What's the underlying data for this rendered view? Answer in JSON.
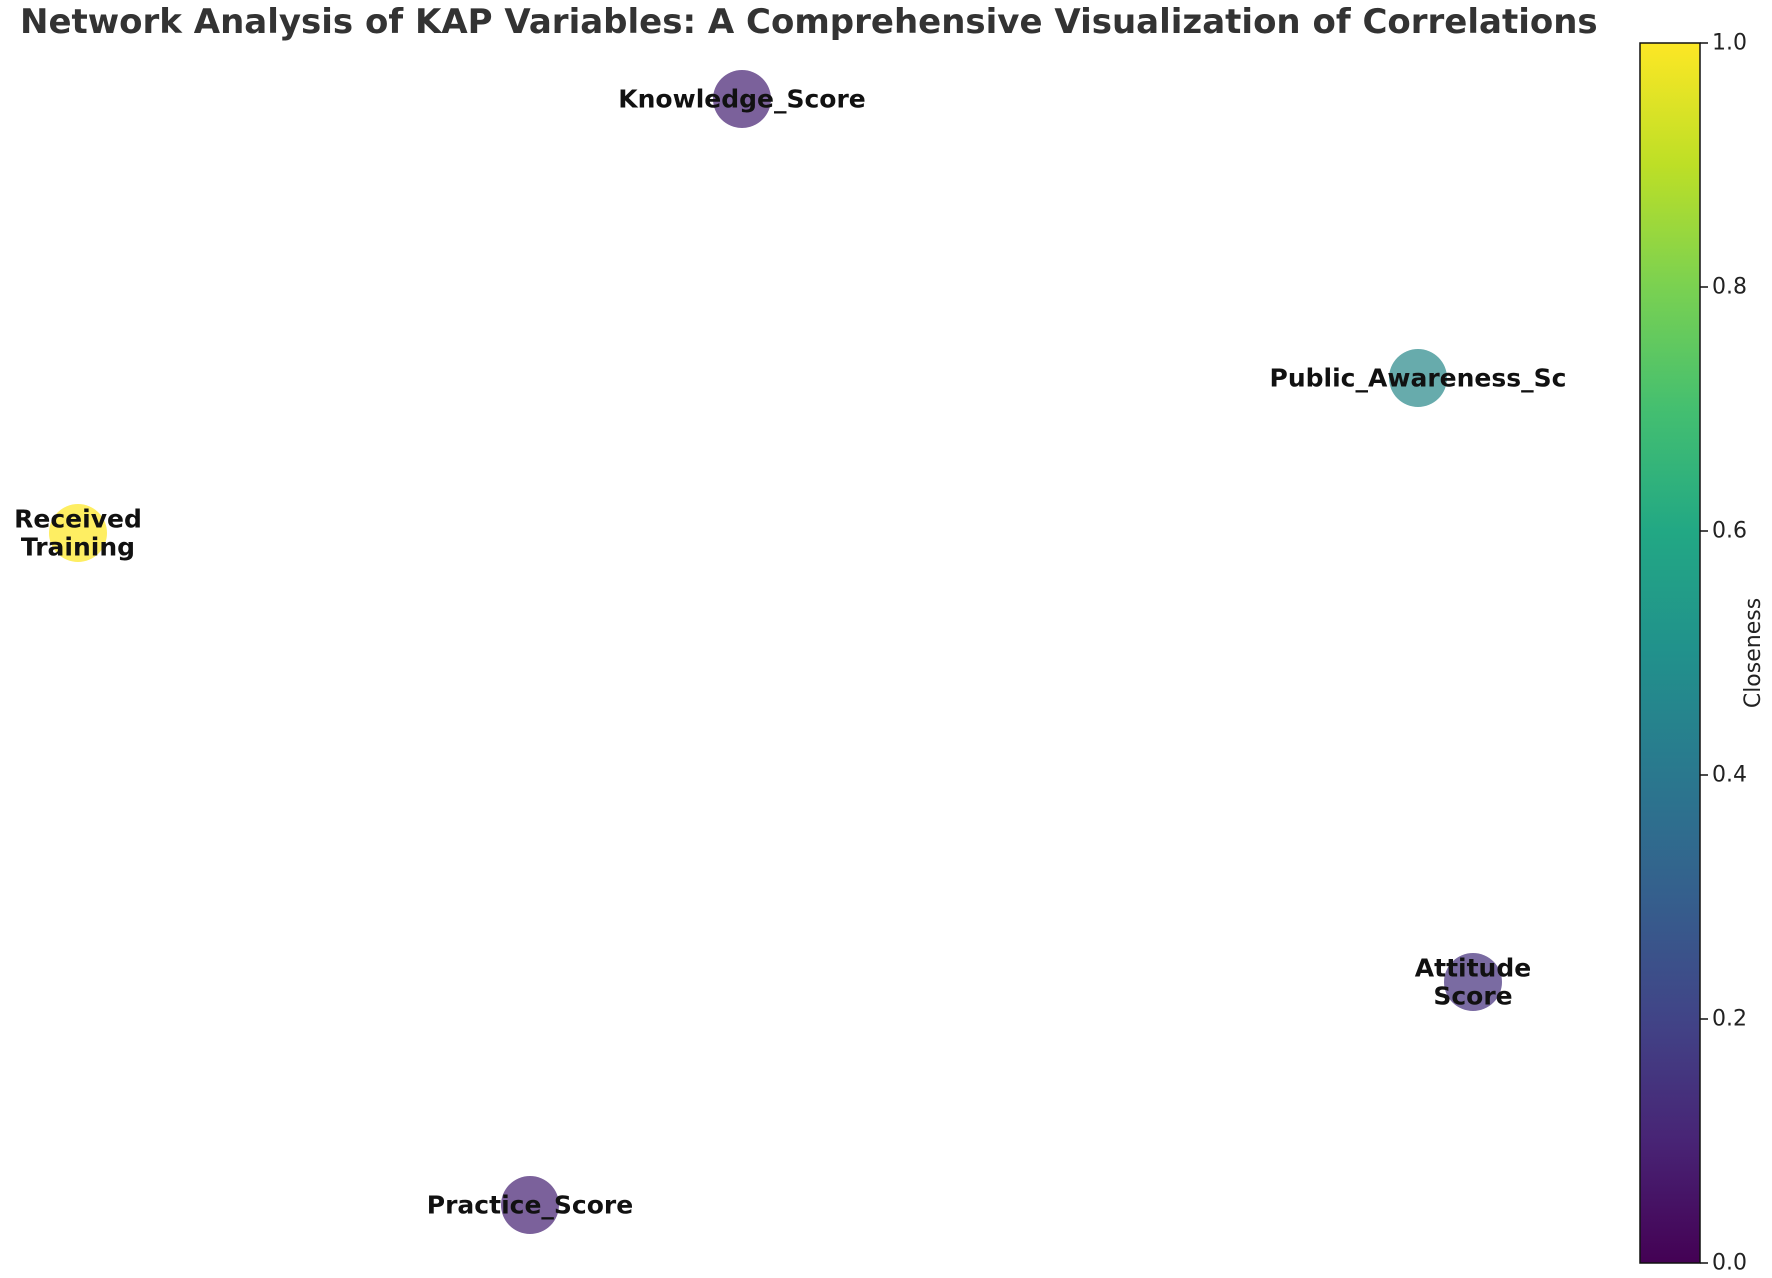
{
  "chart_data": {
    "type": "network",
    "title": "Network Analysis of KAP Variables: A Comprehensive Visualization of Correlations",
    "nodes": [
      {
        "id": "knowledge",
        "label_lines": [
          "Knowledge_Score"
        ],
        "closeness": 0.11,
        "color": "#482475"
      },
      {
        "id": "public_awareness",
        "label_lines": [
          "Public_Awareness_Sc"
        ],
        "closeness": 0.47,
        "color": "#2d8a8c"
      },
      {
        "id": "received_training",
        "label_lines": [
          "Received",
          "Training"
        ],
        "closeness": 1.0,
        "color": "#fde725"
      },
      {
        "id": "attitude",
        "label_lines": [
          "Attitude",
          "Score"
        ],
        "closeness": 0.15,
        "color": "#46327e"
      },
      {
        "id": "practice",
        "label_lines": [
          "Practice_Score"
        ],
        "closeness": 0.11,
        "color": "#482475"
      }
    ],
    "edges": [],
    "colorbar": {
      "label": "Closeness",
      "colormap": "viridis",
      "range": [
        0.0,
        1.0
      ],
      "ticks": [
        "0.0",
        "0.2",
        "0.4",
        "0.6",
        "0.8",
        "1.0"
      ]
    }
  }
}
